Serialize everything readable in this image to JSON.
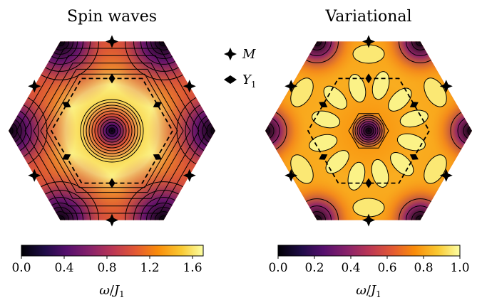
{
  "chart_data": [
    {
      "type": "heatmap",
      "title": "Spin waves",
      "colormap": "inferno",
      "colorbar": {
        "label": "ω/J1",
        "range": [
          0.0,
          1.7
        ],
        "ticks": [
          "0.0",
          "0.4",
          "0.8",
          "1.2",
          "1.6"
        ]
      },
      "features": {
        "zone_center_value": 0.0,
        "outer_corner_value": 0.0,
        "plateau_value": 1.65,
        "plateau_shape": "ring around zone center"
      },
      "legend": [
        {
          "marker": "four-point star",
          "label": "M"
        },
        {
          "marker": "diamond",
          "label": "Y1"
        }
      ]
    },
    {
      "type": "heatmap",
      "title": "Variational",
      "colormap": "inferno",
      "colorbar": {
        "label": "ω/J1",
        "range": [
          0.0,
          1.0
        ],
        "ticks": [
          "0.0",
          "0.2",
          "0.4",
          "0.6",
          "0.8",
          "1.0"
        ]
      },
      "features": {
        "zone_center_value": 0.0,
        "outer_corner_value": 0.0,
        "plateau_value": 1.0,
        "plateau_shape": "twelve maxima around zone center"
      }
    }
  ],
  "legend_labels": {
    "m": "M",
    "y": "Y",
    "y_sub": "1"
  },
  "axis_label": {
    "omega": "ω",
    "sep": "/",
    "j": "J",
    "j_sub": "1"
  }
}
